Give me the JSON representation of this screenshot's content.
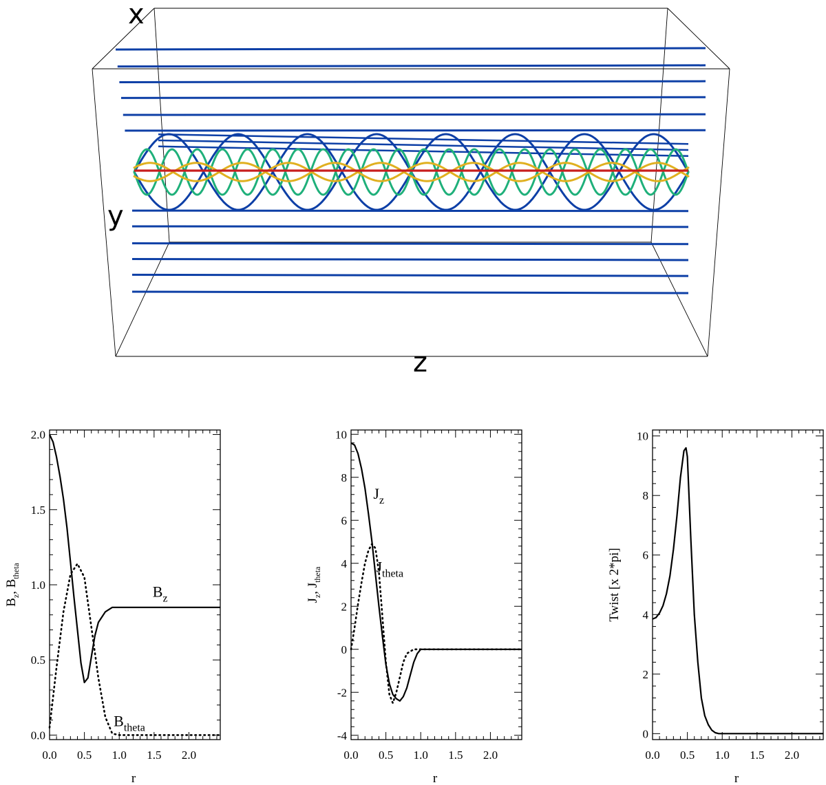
{
  "figure_3d": {
    "axis_labels": {
      "x": "x",
      "y": "y",
      "z": "z"
    },
    "colors": {
      "outer_field_lines": "#0d3fa6",
      "green_helix": "#1fb07a",
      "yellow_helix": "#e0b020",
      "axis_line": "#c81e1e",
      "box": "#000000"
    },
    "outer_line_levels": [
      -1.0,
      -0.86,
      -0.73,
      -0.6,
      -0.46,
      -0.33,
      0.33,
      0.46,
      0.6,
      0.73,
      0.86,
      1.0
    ],
    "helices": [
      {
        "name": "blue-wide",
        "color": "#0d3fa6",
        "amplitude": 0.5,
        "periods": 4,
        "phase": 0.0
      },
      {
        "name": "blue-wide-2",
        "color": "#0d3fa6",
        "amplitude": 0.5,
        "periods": 4,
        "phase": 3.14
      },
      {
        "name": "green",
        "color": "#1fb07a",
        "amplitude": 0.3,
        "periods": 11,
        "phase": 0.0
      },
      {
        "name": "green-2",
        "color": "#1fb07a",
        "amplitude": 0.3,
        "periods": 11,
        "phase": 3.14
      },
      {
        "name": "yellow",
        "color": "#e0b020",
        "amplitude": 0.12,
        "periods": 6,
        "phase": 0.5
      },
      {
        "name": "yellow-2",
        "color": "#e0b020",
        "amplitude": 0.12,
        "periods": 6,
        "phase": 3.64
      }
    ]
  },
  "chart_data": [
    {
      "type": "line",
      "xlabel": "r",
      "ylabel": {
        "main": "B",
        "parts": [
          [
            "B",
            "z"
          ],
          [
            "B",
            "theta"
          ]
        ]
      },
      "xlim": [
        0,
        2.45
      ],
      "ylim": [
        -0.03,
        2.03
      ],
      "xticks": [
        0.0,
        0.5,
        1.0,
        1.5,
        2.0
      ],
      "xtick_labels": [
        "0.0",
        "0.5",
        "1.0",
        "1.5",
        "2.0"
      ],
      "yticks": [
        0.0,
        0.5,
        1.0,
        1.5,
        2.0
      ],
      "ytick_labels": [
        "0.0",
        "0.5",
        "1.0",
        "1.5",
        "2.0"
      ],
      "series": [
        {
          "name": "B_z",
          "style": "solid",
          "x": [
            0.0,
            0.05,
            0.1,
            0.15,
            0.2,
            0.25,
            0.3,
            0.35,
            0.4,
            0.45,
            0.5,
            0.55,
            0.6,
            0.65,
            0.7,
            0.8,
            0.9,
            2.45
          ],
          "y": [
            2.0,
            1.95,
            1.85,
            1.72,
            1.57,
            1.38,
            1.15,
            0.92,
            0.7,
            0.48,
            0.35,
            0.38,
            0.52,
            0.66,
            0.75,
            0.82,
            0.85,
            0.85
          ]
        },
        {
          "name": "B_theta",
          "style": "dotted",
          "x": [
            0.0,
            0.1,
            0.2,
            0.3,
            0.4,
            0.5,
            0.6,
            0.7,
            0.8,
            0.9,
            1.0,
            2.45
          ],
          "y": [
            0.05,
            0.45,
            0.82,
            1.07,
            1.14,
            1.05,
            0.72,
            0.38,
            0.12,
            0.01,
            0.0,
            0.0
          ]
        }
      ],
      "annotations": [
        {
          "text": "B",
          "sub": "z",
          "x": 1.48,
          "y": 0.92
        },
        {
          "text": "B",
          "sub": "theta",
          "x": 0.92,
          "y": 0.06
        }
      ]
    },
    {
      "type": "line",
      "xlabel": "r",
      "ylabel": {
        "main": "J",
        "parts": [
          [
            "J",
            "z"
          ],
          [
            "J",
            "theta"
          ]
        ]
      },
      "xlim": [
        0,
        2.45
      ],
      "ylim": [
        -4.2,
        10.2
      ],
      "xticks": [
        0.0,
        0.5,
        1.0,
        1.5,
        2.0
      ],
      "xtick_labels": [
        "0.0",
        "0.5",
        "1.0",
        "1.5",
        "2.0"
      ],
      "yticks": [
        -4,
        -2,
        0,
        2,
        4,
        6,
        8,
        10
      ],
      "ytick_labels": [
        "-4",
        "-2",
        "0",
        "2",
        "4",
        "6",
        "8",
        "10"
      ],
      "series": [
        {
          "name": "J_z",
          "style": "solid",
          "x": [
            0.0,
            0.05,
            0.1,
            0.15,
            0.2,
            0.25,
            0.3,
            0.35,
            0.4,
            0.45,
            0.5,
            0.55,
            0.6,
            0.65,
            0.7,
            0.75,
            0.8,
            0.85,
            0.9,
            0.95,
            1.0,
            2.45
          ],
          "y": [
            9.6,
            9.5,
            9.1,
            8.4,
            7.5,
            6.3,
            5.0,
            3.5,
            2.0,
            0.6,
            -0.7,
            -1.6,
            -2.1,
            -2.3,
            -2.4,
            -2.2,
            -1.8,
            -1.2,
            -0.6,
            -0.2,
            0.0,
            0.0
          ]
        },
        {
          "name": "J_theta",
          "style": "dotted",
          "x": [
            0.0,
            0.05,
            0.1,
            0.15,
            0.2,
            0.25,
            0.3,
            0.35,
            0.4,
            0.45,
            0.5,
            0.55,
            0.6,
            0.65,
            0.7,
            0.75,
            0.8,
            0.9,
            1.0,
            2.45
          ],
          "y": [
            0.0,
            1.0,
            2.1,
            3.1,
            4.0,
            4.6,
            4.9,
            4.7,
            3.6,
            1.5,
            -0.6,
            -2.1,
            -2.5,
            -2.0,
            -1.3,
            -0.6,
            -0.2,
            0.0,
            0.0,
            0.0
          ]
        }
      ],
      "annotations": [
        {
          "text": "J",
          "sub": "z",
          "x": 0.32,
          "y": 7.0
        },
        {
          "text": "J",
          "sub": "theta",
          "x": 0.36,
          "y": 3.6
        }
      ]
    },
    {
      "type": "line",
      "xlabel": "r",
      "ylabel": {
        "main": "Twist  [x 2*pi]",
        "parts": []
      },
      "xlim": [
        0,
        2.45
      ],
      "ylim": [
        -0.2,
        10.2
      ],
      "xticks": [
        0.0,
        0.5,
        1.0,
        1.5,
        2.0
      ],
      "xtick_labels": [
        "0.0",
        "0.5",
        "1.0",
        "1.5",
        "2.0"
      ],
      "yticks": [
        0,
        2,
        4,
        6,
        8,
        10
      ],
      "ytick_labels": [
        "0",
        "2",
        "4",
        "6",
        "8",
        "10"
      ],
      "series": [
        {
          "name": "Twist",
          "style": "solid",
          "x": [
            0.0,
            0.05,
            0.1,
            0.15,
            0.2,
            0.25,
            0.3,
            0.35,
            0.4,
            0.45,
            0.48,
            0.5,
            0.55,
            0.6,
            0.65,
            0.7,
            0.75,
            0.8,
            0.85,
            0.9,
            0.95,
            2.45
          ],
          "y": [
            3.85,
            3.9,
            4.05,
            4.3,
            4.7,
            5.3,
            6.2,
            7.3,
            8.6,
            9.5,
            9.6,
            9.3,
            6.5,
            4.0,
            2.4,
            1.2,
            0.6,
            0.3,
            0.12,
            0.03,
            0.0,
            0.0
          ]
        }
      ],
      "annotations": []
    }
  ]
}
